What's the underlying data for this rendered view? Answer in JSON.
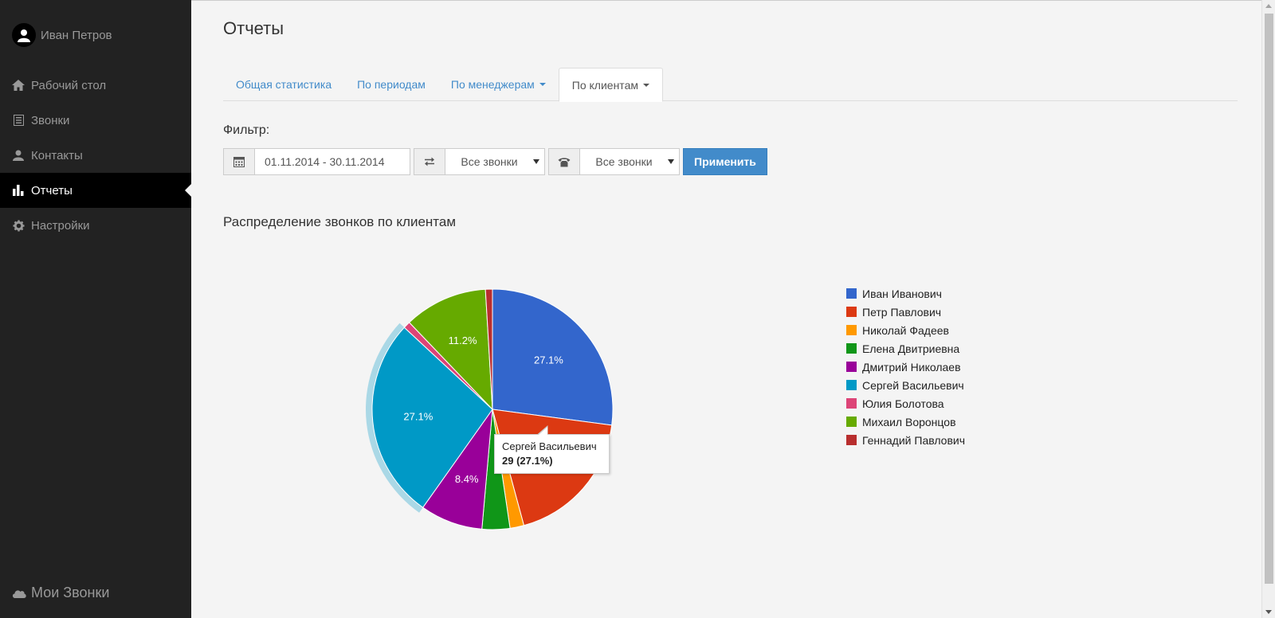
{
  "user": {
    "name": "Иван Петров",
    "icon": "user-icon"
  },
  "sidebar": {
    "items": [
      {
        "label": "Рабочий стол",
        "icon": "home-icon"
      },
      {
        "label": "Звонки",
        "icon": "list-icon"
      },
      {
        "label": "Контакты",
        "icon": "person-icon"
      },
      {
        "label": "Отчеты",
        "icon": "bar-chart-icon",
        "active": true
      },
      {
        "label": "Настройки",
        "icon": "gear-icon"
      }
    ],
    "brand": "Мои Звонки"
  },
  "page": {
    "title": "Отчеты"
  },
  "tabs": [
    {
      "label": "Общая статистика"
    },
    {
      "label": "По периодам"
    },
    {
      "label": "По менеджерам",
      "dropdown": true
    },
    {
      "label": "По клиентам",
      "dropdown": true,
      "active": true
    }
  ],
  "filter": {
    "label": "Фильтр:",
    "date_range": "01.11.2014 - 30.11.2014",
    "direction_value": "Все звонки",
    "type_value": "Все звонки",
    "apply_label": "Применить"
  },
  "colors": {
    "accent": "#428bca",
    "sidebar_bg": "#222222",
    "page_bg": "#f4f4f4"
  },
  "chart_data": {
    "type": "pie",
    "title": "Распределение звонков по клиентам",
    "legend_position": "right",
    "series": [
      {
        "name": "Иван Иванович",
        "value": 29,
        "percent": 27.1,
        "label": "27.1%",
        "color": "#3366cc"
      },
      {
        "name": "Петр Павлович",
        "value": 20,
        "percent": 18.7,
        "label": "18.7%",
        "color": "#dc3912"
      },
      {
        "name": "Николай Фадеев",
        "value": 2,
        "percent": 1.9,
        "label": "",
        "color": "#ff9900"
      },
      {
        "name": "Елена Двитриевна",
        "value": 4,
        "percent": 3.7,
        "label": "",
        "color": "#109618"
      },
      {
        "name": "Дмитрий Николаев",
        "value": 9,
        "percent": 8.4,
        "label": "8.4%",
        "color": "#990099"
      },
      {
        "name": "Сергей Васильевич",
        "value": 29,
        "percent": 27.1,
        "label": "27.1%",
        "color": "#0099c6"
      },
      {
        "name": "Юлия Болотова",
        "value": 1,
        "percent": 0.9,
        "label": "",
        "color": "#dd4477"
      },
      {
        "name": "Михаил Воронцов",
        "value": 12,
        "percent": 11.2,
        "label": "11.2%",
        "color": "#66aa00"
      },
      {
        "name": "Геннадий Павлович",
        "value": 1,
        "percent": 0.9,
        "label": "",
        "color": "#b82e2e"
      }
    ],
    "highlighted": "Сергей Васильевич",
    "tooltip": {
      "name": "Сергей Васильевич",
      "value_text": "29 (27.1%)"
    }
  }
}
